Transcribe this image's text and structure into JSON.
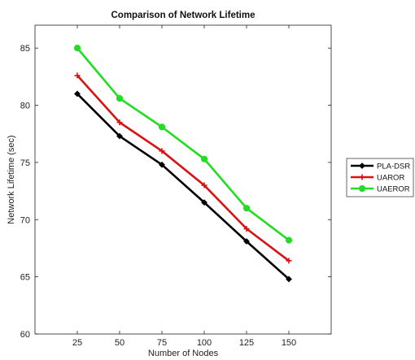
{
  "chart_data": {
    "type": "line",
    "title": "Comparison of Network Lifetime",
    "xlabel": "Number of Nodes",
    "ylabel": "Network Lifetime (sec)",
    "x": [
      25,
      50,
      75,
      100,
      125,
      150
    ],
    "xlim": [
      0,
      175
    ],
    "ylim": [
      60,
      87
    ],
    "xticks": [
      25,
      50,
      75,
      100,
      125,
      150
    ],
    "yticks": [
      60,
      65,
      70,
      75,
      80,
      85
    ],
    "grid": false,
    "legend_position": "outside-right",
    "series": [
      {
        "name": "PLA-DSR",
        "color": "#000000",
        "marker": "diamond",
        "values": [
          81.0,
          77.3,
          74.8,
          71.5,
          68.1,
          64.8
        ]
      },
      {
        "name": "UAROR",
        "color": "#dd1111",
        "marker": "plus",
        "values": [
          82.6,
          78.5,
          76.0,
          73.0,
          69.2,
          66.4
        ]
      },
      {
        "name": "UAEROR",
        "color": "#22dd22",
        "marker": "circle",
        "values": [
          85.0,
          80.6,
          78.1,
          75.3,
          71.0,
          68.2
        ]
      }
    ]
  }
}
